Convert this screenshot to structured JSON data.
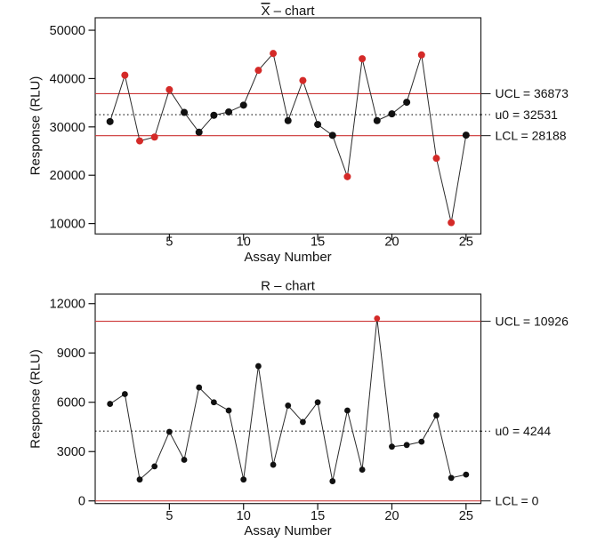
{
  "figure_title": "Control charts",
  "colors": {
    "background": "#ffffff",
    "in_control_point": "#111111",
    "out_of_control_point": "#d42a28",
    "limit_line": "#cc3333",
    "center_line": "#111111",
    "series_line": "#2b2b2b",
    "frame": "#222222",
    "text": "#111111"
  },
  "chart_data": [
    {
      "type": "line",
      "title": {
        "overlined": "X",
        "rest": " – chart"
      },
      "xlabel": "Assay Number",
      "ylabel": "Response (RLU)",
      "x": [
        1,
        2,
        3,
        4,
        5,
        6,
        7,
        8,
        9,
        10,
        11,
        12,
        13,
        14,
        15,
        16,
        17,
        18,
        19,
        20,
        21,
        22,
        23,
        24,
        25
      ],
      "values": [
        31100,
        40700,
        27100,
        27900,
        37700,
        33000,
        28900,
        32400,
        33100,
        34500,
        41700,
        45200,
        31300,
        39600,
        30500,
        28250,
        19700,
        44100,
        31300,
        32700,
        35100,
        44900,
        23500,
        10200,
        28300
      ],
      "out_of_control_assays": [
        2,
        3,
        4,
        5,
        11,
        12,
        14,
        17,
        18,
        22,
        23,
        24
      ],
      "control_limits": {
        "ucl": {
          "value": 36873,
          "label": "UCL = 36873"
        },
        "center": {
          "value": 32531,
          "label": "u0 = 32531"
        },
        "lcl": {
          "value": 28188,
          "label": "LCL = 28188"
        }
      },
      "yticks": [
        10000,
        20000,
        30000,
        40000,
        50000
      ],
      "xticks": [
        5,
        10,
        15,
        20,
        25
      ],
      "ylim": [
        7850,
        52580
      ],
      "xlim": [
        0,
        26
      ],
      "grid": false,
      "legend": null
    },
    {
      "type": "line",
      "title": {
        "overlined": "",
        "rest": "R – chart"
      },
      "xlabel": "Assay Number",
      "ylabel": "Response (RLU)",
      "x": [
        1,
        2,
        3,
        4,
        5,
        6,
        7,
        8,
        9,
        10,
        11,
        12,
        13,
        14,
        15,
        16,
        17,
        18,
        19,
        20,
        21,
        22,
        23,
        24,
        25
      ],
      "values": [
        5900,
        6500,
        1300,
        2100,
        4200,
        2500,
        6900,
        6000,
        5500,
        1300,
        8200,
        2200,
        5800,
        4800,
        6000,
        1200,
        5500,
        1900,
        11100,
        3300,
        3400,
        3600,
        5200,
        1400,
        1600
      ],
      "out_of_control_assays": [
        19
      ],
      "control_limits": {
        "ucl": {
          "value": 10926,
          "label": "UCL = 10926"
        },
        "center": {
          "value": 4244,
          "label": "u0 = 4244"
        },
        "lcl": {
          "value": 0,
          "label": "LCL = 0"
        }
      },
      "yticks": [
        0,
        3000,
        6000,
        9000,
        12000
      ],
      "xticks": [
        5,
        10,
        15,
        20,
        25
      ],
      "ylim": [
        -160,
        12580
      ],
      "xlim": [
        0,
        26
      ],
      "grid": false,
      "legend": null
    }
  ]
}
